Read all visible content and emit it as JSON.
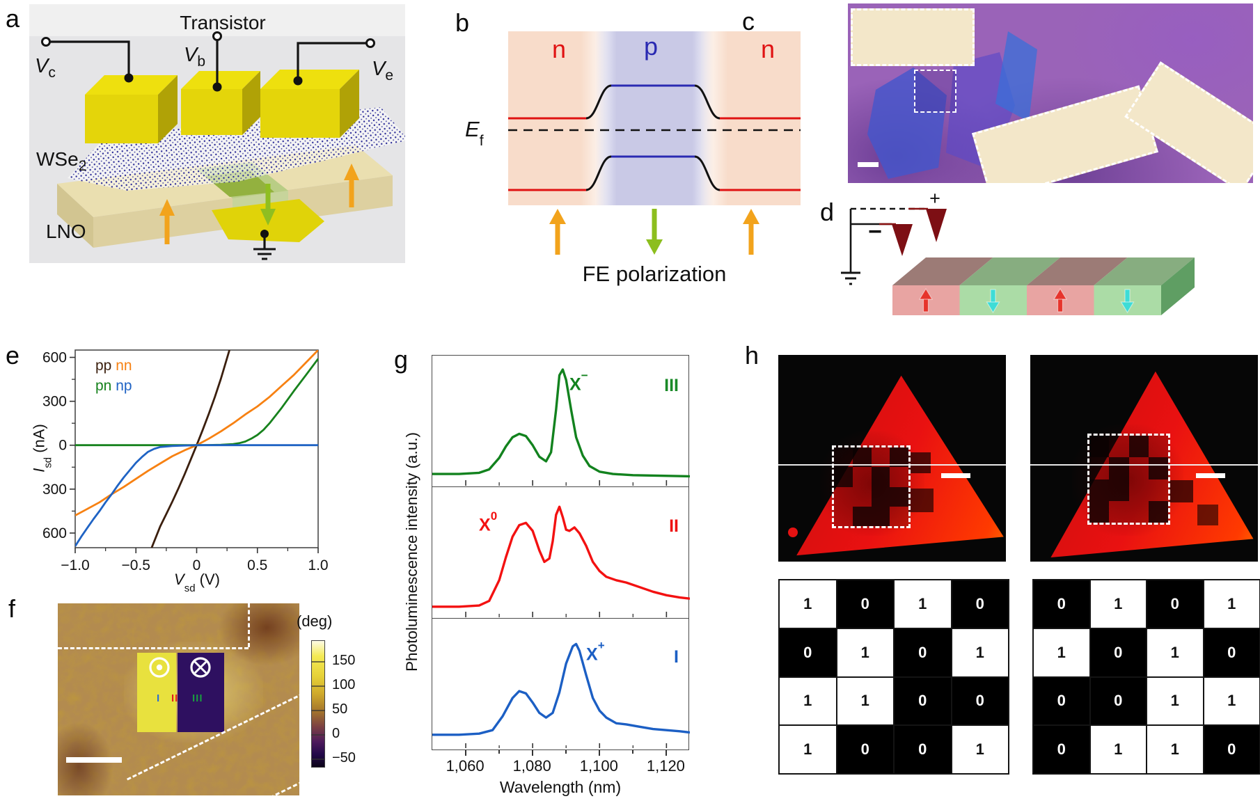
{
  "panels": {
    "a": {
      "letter": "a",
      "title": "Transistor",
      "terminals": [
        {
          "main": "V",
          "sub": "c"
        },
        {
          "main": "V",
          "sub": "b"
        },
        {
          "main": "V",
          "sub": "e"
        }
      ],
      "material_top": {
        "main": "WSe",
        "sub": "2"
      },
      "material_bottom": "LNO"
    },
    "b": {
      "letter": "b",
      "regions": [
        {
          "label": "n",
          "color": "#e01212"
        },
        {
          "label": "p",
          "color": "#2a2ab2"
        },
        {
          "label": "n",
          "color": "#e01212"
        }
      ],
      "fermi_level": {
        "main": "E",
        "sub": "f"
      },
      "caption": "FE polarization"
    },
    "c": {
      "letter": "c"
    },
    "d": {
      "letter": "d",
      "plus_label": "+",
      "minus_label": "−"
    },
    "e": {
      "letter": "e"
    },
    "f": {
      "letter": "f",
      "colorbar": {
        "unit": "(deg)",
        "tick_labels": [
          "150",
          "100",
          "50",
          "0",
          "−50"
        ]
      },
      "domain_markers": [
        {
          "label": "I",
          "color": "#2e6fd0"
        },
        {
          "label": "II",
          "color": "#e02020"
        },
        {
          "label": "III",
          "color": "#1a9a40"
        }
      ]
    },
    "g": {
      "letter": "g"
    },
    "h": {
      "letter": "h",
      "matrices": [
        {
          "rows": [
            [
              1,
              0,
              1,
              0
            ],
            [
              0,
              1,
              0,
              1
            ],
            [
              1,
              1,
              0,
              0
            ],
            [
              1,
              0,
              0,
              1
            ]
          ]
        },
        {
          "rows": [
            [
              0,
              1,
              0,
              1
            ],
            [
              1,
              0,
              1,
              0
            ],
            [
              0,
              0,
              1,
              1
            ],
            [
              0,
              1,
              1,
              0
            ]
          ]
        }
      ]
    }
  },
  "chart_data": [
    {
      "panel": "e",
      "type": "line",
      "xlabel": {
        "main": "V",
        "sub": "sd",
        "unit": " (V)"
      },
      "ylabel": {
        "main": "I",
        "sub": "sd",
        "unit": " (nA)"
      },
      "xlim": [
        -1.0,
        1.0
      ],
      "ylim": [
        -700,
        650
      ],
      "xticks": [
        -1.0,
        -0.5,
        0,
        0.5,
        1.0
      ],
      "xtick_labels": [
        "−1.0",
        "−0.5",
        "0",
        "0.5",
        "1.0"
      ],
      "xticks_minor": [
        -0.75,
        -0.25,
        0.25,
        0.75
      ],
      "yticks": [
        600,
        300,
        0,
        -300,
        -600
      ],
      "ytick_labels": [
        "600",
        "300",
        "0",
        "−300",
        "−600"
      ],
      "yticks_minor": [
        450,
        150,
        -150,
        -450
      ],
      "grid": false,
      "legend_position": "top-left",
      "series": [
        {
          "name": "pp",
          "color": "#3b1f0e",
          "x": [
            -0.37,
            -0.3,
            -0.25,
            -0.2,
            -0.15,
            -0.1,
            -0.05,
            0,
            0.05,
            0.1,
            0.15,
            0.2,
            0.27
          ],
          "y": [
            -700,
            -555,
            -470,
            -385,
            -295,
            -200,
            -100,
            0,
            105,
            215,
            330,
            455,
            650
          ]
        },
        {
          "name": "nn",
          "color": "#f78112",
          "x": [
            -1,
            -0.9,
            -0.8,
            -0.7,
            -0.6,
            -0.5,
            -0.4,
            -0.3,
            -0.2,
            -0.1,
            0,
            0.1,
            0.2,
            0.3,
            0.4,
            0.5,
            0.6,
            0.7,
            0.8,
            0.9,
            1.0
          ],
          "y": [
            -480,
            -435,
            -390,
            -335,
            -285,
            -230,
            -175,
            -125,
            -75,
            -35,
            0,
            45,
            95,
            150,
            210,
            265,
            330,
            405,
            480,
            565,
            650
          ]
        },
        {
          "name": "pn",
          "color": "#17821d",
          "x": [
            -1,
            -0.6,
            -0.3,
            -0.1,
            0,
            0.1,
            0.2,
            0.3,
            0.35,
            0.4,
            0.45,
            0.5,
            0.55,
            0.6,
            0.7,
            0.8,
            0.9,
            1.0
          ],
          "y": [
            0,
            0,
            0,
            0,
            0,
            1,
            3,
            8,
            14,
            25,
            45,
            70,
            105,
            150,
            255,
            370,
            480,
            590
          ]
        },
        {
          "name": "np",
          "color": "#1f63c4",
          "x": [
            -1.0,
            -0.95,
            -0.9,
            -0.85,
            -0.8,
            -0.75,
            -0.7,
            -0.65,
            -0.6,
            -0.55,
            -0.5,
            -0.45,
            -0.4,
            -0.35,
            -0.3,
            -0.2,
            -0.1,
            0,
            0.3,
            0.6,
            1.0
          ],
          "y": [
            -690,
            -625,
            -565,
            -505,
            -450,
            -390,
            -335,
            -275,
            -220,
            -170,
            -120,
            -80,
            -45,
            -25,
            -12,
            -5,
            -2,
            0,
            0,
            0,
            0
          ]
        }
      ]
    },
    {
      "panel": "g",
      "type": "line",
      "xlabel": "Wavelength (nm)",
      "ylabel": "Photoluminescence intensity (a.u.)",
      "xlim": [
        1050,
        1127
      ],
      "ylim": [
        0,
        1
      ],
      "xticks": [
        1060,
        1080,
        1100,
        1120
      ],
      "xtick_labels": [
        "1,060",
        "1,080",
        "1,100",
        "1,120"
      ],
      "xticks_minor": [
        1070,
        1090,
        1110
      ],
      "subpanels": [
        {
          "label": "III",
          "label_color": "#1a8a28",
          "peak_label": {
            "main": "X",
            "sup": "−"
          },
          "color": "#12821e",
          "x": [
            1050,
            1058,
            1064,
            1067,
            1070,
            1072,
            1074,
            1076,
            1078,
            1080,
            1082,
            1084,
            1085.5,
            1087,
            1088,
            1089,
            1090,
            1091.5,
            1093,
            1095,
            1097,
            1100,
            1104,
            1110,
            1118,
            1127
          ],
          "y": [
            0.06,
            0.06,
            0.07,
            0.1,
            0.2,
            0.3,
            0.38,
            0.41,
            0.39,
            0.31,
            0.21,
            0.17,
            0.25,
            0.62,
            0.92,
            0.97,
            0.88,
            0.62,
            0.38,
            0.22,
            0.13,
            0.08,
            0.06,
            0.05,
            0.045,
            0.04
          ]
        },
        {
          "label": "II",
          "label_color": "#ee1111",
          "peak_label": {
            "main": "X",
            "sup": "0"
          },
          "color": "#f31111",
          "x": [
            1050,
            1058,
            1064,
            1067,
            1070,
            1072,
            1074,
            1076,
            1078,
            1080,
            1082,
            1083.5,
            1085,
            1086,
            1087,
            1088,
            1089,
            1090,
            1091,
            1092.5,
            1094,
            1096,
            1098,
            1100,
            1102,
            1105,
            1108,
            1112,
            1116,
            1120,
            1124,
            1127
          ],
          "y": [
            0.05,
            0.05,
            0.06,
            0.1,
            0.28,
            0.48,
            0.66,
            0.76,
            0.78,
            0.71,
            0.54,
            0.44,
            0.47,
            0.62,
            0.85,
            0.92,
            0.83,
            0.72,
            0.71,
            0.74,
            0.69,
            0.58,
            0.44,
            0.36,
            0.31,
            0.28,
            0.26,
            0.22,
            0.18,
            0.15,
            0.13,
            0.12
          ]
        },
        {
          "label": "I",
          "label_color": "#1c5fc4",
          "peak_label": {
            "main": "X",
            "sup": "+"
          },
          "color": "#1c5fc4",
          "x": [
            1050,
            1058,
            1064,
            1068,
            1071,
            1074,
            1076,
            1078,
            1080,
            1082,
            1084,
            1086,
            1088,
            1090,
            1092,
            1093,
            1094,
            1096,
            1098,
            1100,
            1102,
            1105,
            1108,
            1112,
            1116,
            1120,
            1124,
            1127
          ],
          "y": [
            0.08,
            0.08,
            0.09,
            0.12,
            0.24,
            0.4,
            0.46,
            0.44,
            0.36,
            0.27,
            0.23,
            0.27,
            0.45,
            0.7,
            0.85,
            0.87,
            0.81,
            0.6,
            0.4,
            0.29,
            0.23,
            0.18,
            0.17,
            0.15,
            0.13,
            0.12,
            0.11,
            0.1
          ]
        }
      ]
    }
  ]
}
